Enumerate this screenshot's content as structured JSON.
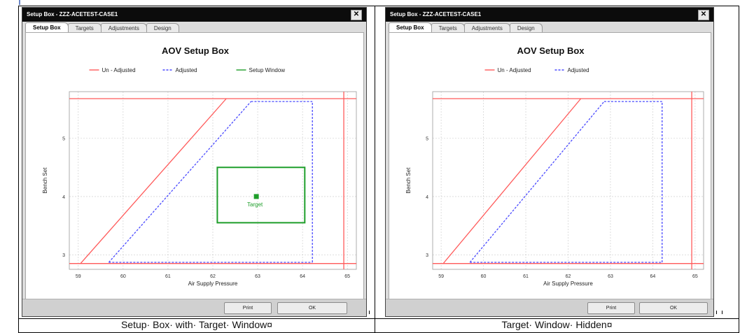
{
  "panels": [
    {
      "id": "left",
      "window_title": "Setup Box - ZZZ-ACETEST-CASE1",
      "close_glyph": "✕",
      "tabs": [
        "Setup Box",
        "Targets",
        "Adjustments",
        "Design"
      ],
      "active_tab": 0,
      "buttons": {
        "print": "Print",
        "ok": "OK"
      },
      "caption": "Setup· Box· with· Target· Window¤",
      "chart_data": {
        "type": "line",
        "title": "AOV Setup Box",
        "xlabel": "Air Supply Pressure",
        "ylabel": "Bench Set",
        "xlim": [
          58.8,
          65.2
        ],
        "ylim": [
          2.75,
          5.8
        ],
        "xticks": [
          59,
          60,
          61,
          62,
          63,
          64,
          65
        ],
        "yticks": [
          3,
          4,
          5
        ],
        "grid": true,
        "legend_position": "top",
        "series": [
          {
            "name": "Un - Adjusted",
            "color": "#ff5a5a",
            "style": "solid",
            "segments": [
              [
                [
                  59.05,
                  2.85
                ],
                [
                  62.3,
                  5.68
                ]
              ],
              [
                [
                  58.8,
                  5.68
                ],
                [
                  65.2,
                  5.68
                ]
              ],
              [
                [
                  58.8,
                  2.85
                ],
                [
                  65.2,
                  2.85
                ]
              ],
              [
                [
                  64.92,
                  2.75
                ],
                [
                  64.92,
                  5.8
                ]
              ]
            ]
          },
          {
            "name": "Adjusted",
            "color": "#4a4aff",
            "style": "dashed",
            "segments": [
              [
                [
                  59.68,
                  2.87
                ],
                [
                  62.85,
                  5.63
                ]
              ],
              [
                [
                  62.85,
                  5.63
                ],
                [
                  64.22,
                  5.63
                ]
              ],
              [
                [
                  64.22,
                  2.87
                ],
                [
                  64.22,
                  5.63
                ]
              ],
              [
                [
                  59.68,
                  2.87
                ],
                [
                  64.22,
                  2.87
                ]
              ]
            ]
          },
          {
            "name": "Setup Window",
            "color": "#1e9e2a",
            "style": "solid",
            "rect": {
              "x0": 62.1,
              "x1": 64.05,
              "y0": 3.55,
              "y1": 4.5
            },
            "target": {
              "x": 62.97,
              "y": 4.0,
              "label": "Target"
            }
          }
        ]
      }
    },
    {
      "id": "right",
      "window_title": "Setup Box - ZZZ-ACETEST-CASE1",
      "close_glyph": "✕",
      "tabs": [
        "Setup Box",
        "Targets",
        "Adjustments",
        "Design"
      ],
      "active_tab": 0,
      "buttons": {
        "print": "Print",
        "ok": "OK"
      },
      "caption": "Target· Window· Hidden¤",
      "chart_data": {
        "type": "line",
        "title": "AOV Setup Box",
        "xlabel": "Air Supply Pressure",
        "ylabel": "Bench Set",
        "xlim": [
          58.8,
          65.2
        ],
        "ylim": [
          2.75,
          5.8
        ],
        "xticks": [
          59,
          60,
          61,
          62,
          63,
          64,
          65
        ],
        "yticks": [
          3,
          4,
          5
        ],
        "grid": true,
        "legend_position": "top",
        "series": [
          {
            "name": "Un - Adjusted",
            "color": "#ff5a5a",
            "style": "solid",
            "segments": [
              [
                [
                  59.05,
                  2.85
                ],
                [
                  62.3,
                  5.68
                ]
              ],
              [
                [
                  58.8,
                  5.68
                ],
                [
                  65.2,
                  5.68
                ]
              ],
              [
                [
                  58.8,
                  2.85
                ],
                [
                  65.2,
                  2.85
                ]
              ],
              [
                [
                  64.92,
                  2.75
                ],
                [
                  64.92,
                  5.8
                ]
              ]
            ]
          },
          {
            "name": "Adjusted",
            "color": "#4a4aff",
            "style": "dashed",
            "segments": [
              [
                [
                  59.68,
                  2.87
                ],
                [
                  62.85,
                  5.63
                ]
              ],
              [
                [
                  62.85,
                  5.63
                ],
                [
                  64.22,
                  5.63
                ]
              ],
              [
                [
                  64.22,
                  2.87
                ],
                [
                  64.22,
                  5.63
                ]
              ],
              [
                [
                  59.68,
                  2.87
                ],
                [
                  64.22,
                  2.87
                ]
              ]
            ]
          }
        ]
      }
    }
  ]
}
